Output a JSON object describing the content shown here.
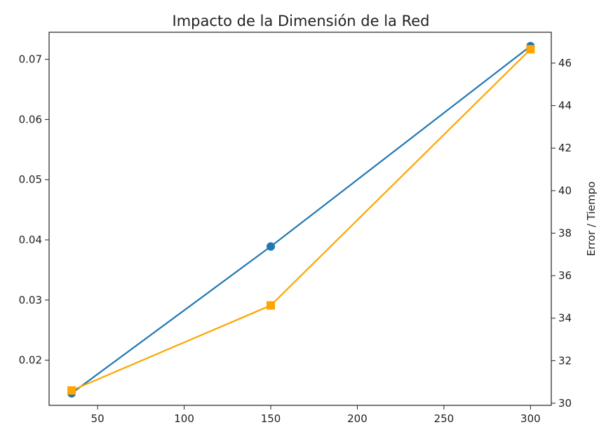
{
  "chart_data": {
    "type": "line",
    "title": "Impacto de la Dimensión de la Red",
    "xlabel": "",
    "ylabel_left": "",
    "ylabel_right": "Error / Tiempo",
    "x": [
      35,
      150,
      300
    ],
    "xlim": [
      22,
      312
    ],
    "ylim_left": [
      0.0125,
      0.0745
    ],
    "ylim_right": [
      29.9,
      47.45
    ],
    "x_ticks": [
      50,
      100,
      150,
      200,
      250,
      300
    ],
    "y_left_ticks": [
      0.02,
      0.03,
      0.04,
      0.05,
      0.06,
      0.07
    ],
    "y_right_ticks": [
      30,
      32,
      34,
      36,
      38,
      40,
      42,
      44,
      46
    ],
    "grid": false,
    "series": [
      {
        "axis": "left",
        "marker": "circle",
        "color": "#1f77b4",
        "values": [
          0.0145,
          0.0389,
          0.0722
        ]
      },
      {
        "axis": "right",
        "marker": "square",
        "color": "#ffa500",
        "values": [
          30.6,
          34.6,
          46.65
        ]
      }
    ]
  }
}
